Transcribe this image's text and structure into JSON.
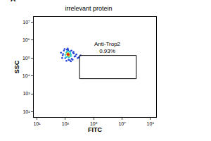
{
  "chart_data": {
    "type": "scatter",
    "panel": "A",
    "title": "irrelevant protein",
    "x_label": "FITC",
    "y_label": "SSC",
    "log": true,
    "grid": false,
    "xlim": [
      6,
      2500000000
    ],
    "ylim": [
      50,
      20000000
    ],
    "xticks": [
      {
        "value": 10,
        "label": "10¹"
      },
      {
        "value": 1000,
        "label": "10³"
      },
      {
        "value": 100000,
        "label": "10⁵"
      },
      {
        "value": 10000000,
        "label": "10⁷"
      },
      {
        "value": 1000000000,
        "label": "10⁹"
      }
    ],
    "yticks": [
      {
        "value": 100,
        "label": "10²"
      },
      {
        "value": 1000,
        "label": "10³"
      },
      {
        "value": 10000,
        "label": "10⁴"
      },
      {
        "value": 100000,
        "label": "10⁵"
      },
      {
        "value": 1000000,
        "label": "10⁶"
      },
      {
        "value": 10000000,
        "label": "10⁷"
      }
    ],
    "series": [
      {
        "color": "#1f3fd6",
        "x": [
          500,
          650,
          800,
          1000,
          1300,
          1700,
          2200,
          2800,
          3500,
          4500,
          6000,
          7500,
          600,
          900,
          1200,
          1600,
          2100,
          2700,
          3300,
          4000,
          5200,
          700,
          1500,
          2500,
          3800,
          9000,
          12000
        ],
        "y": [
          200000,
          140000,
          260000,
          100000,
          300000,
          80000,
          240000,
          90000,
          200000,
          120000,
          160000,
          100000,
          100000,
          320000,
          70000,
          280000,
          75000,
          260000,
          80000,
          180000,
          130000,
          170000,
          340000,
          65000,
          220000,
          110000,
          140000
        ]
      },
      {
        "color": "#19c7d0",
        "x": [
          1000,
          1200,
          1400,
          1600,
          1900,
          2200,
          2500,
          1100,
          1500,
          1800,
          2100,
          2400,
          1300,
          1700,
          2000
        ],
        "y": [
          150000,
          200000,
          120000,
          220000,
          140000,
          190000,
          130000,
          110000,
          180000,
          110000,
          230000,
          160000,
          240000,
          150000,
          130000
        ]
      },
      {
        "color": "#e8d21a",
        "x": [
          1300,
          1500,
          1700,
          1900,
          1400,
          1600,
          1800,
          1500
        ],
        "y": [
          160000,
          140000,
          180000,
          150000,
          190000,
          170000,
          130000,
          155000
        ]
      },
      {
        "color": "#e0231b",
        "x": [
          1450,
          1600,
          1550,
          1700
        ],
        "y": [
          160000,
          150000,
          170000,
          160000
        ]
      }
    ],
    "gate": {
      "xlim": [
        10000,
        100000000
      ],
      "ylim": [
        7000,
        140000
      ],
      "labels": [
        "Anti-Trop2",
        "0.93%"
      ]
    }
  }
}
